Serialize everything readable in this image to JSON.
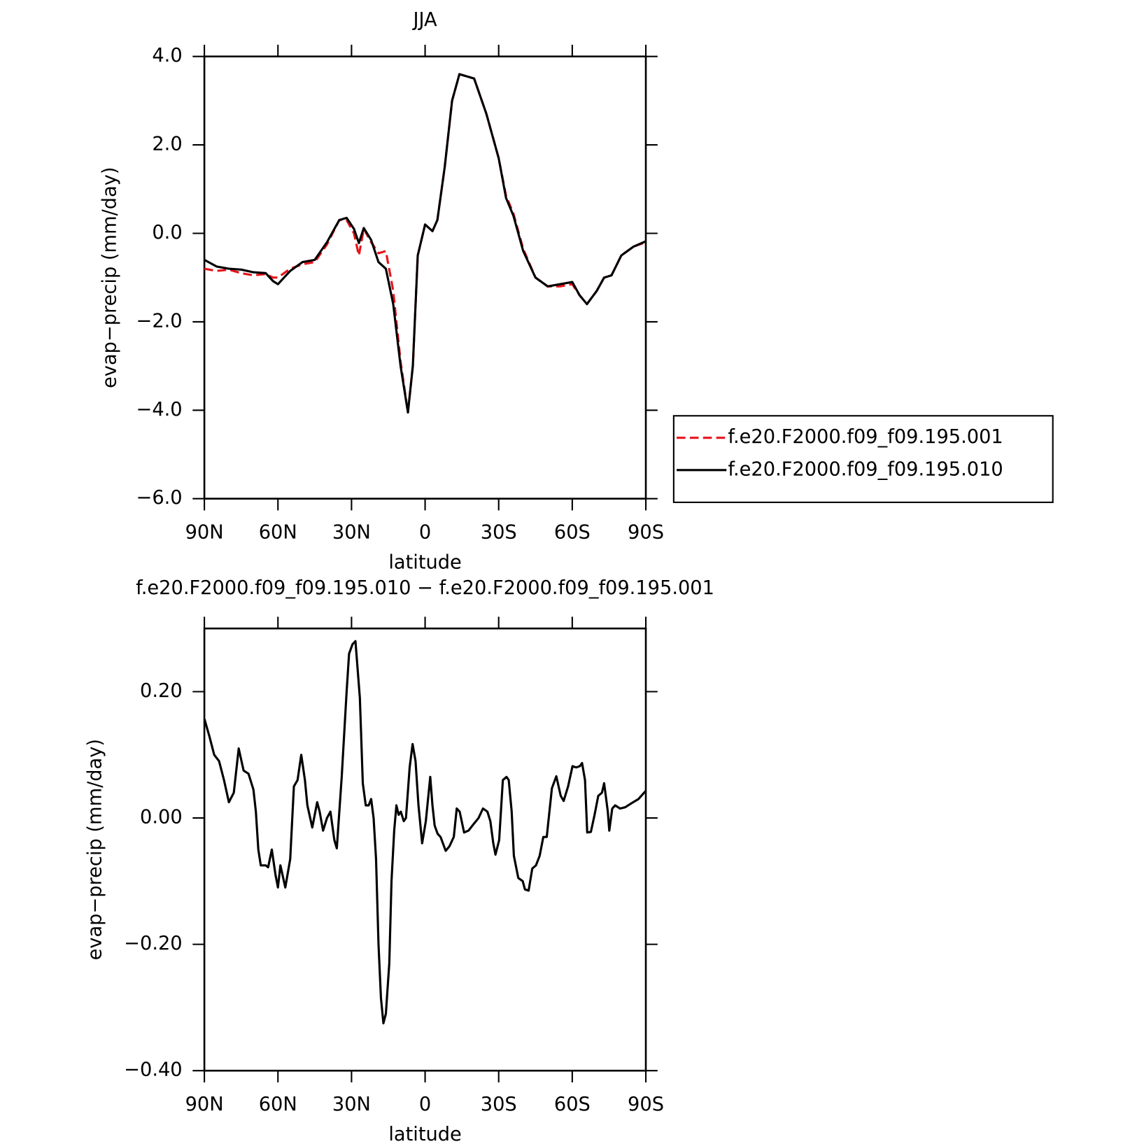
{
  "chart_data": [
    {
      "type": "line",
      "title": "JJA",
      "xlabel": "latitude",
      "ylabel": "evap−precip (mm/day)",
      "xlim": [
        90,
        -90
      ],
      "xticks": [
        {
          "value": 90,
          "label": "90N"
        },
        {
          "value": 60,
          "label": "60N"
        },
        {
          "value": 30,
          "label": "30N"
        },
        0,
        {
          "value": -30,
          "label": "30S"
        },
        {
          "value": -60,
          "label": "60S"
        },
        {
          "value": -90,
          "label": "90S"
        }
      ],
      "ylim": [
        -6,
        4
      ],
      "yticks": [
        {
          "value": 4,
          "label": "4.0"
        },
        {
          "value": 2,
          "label": "2.0"
        },
        {
          "value": 0,
          "label": "0.0"
        },
        {
          "value": -2,
          "label": "−2.0"
        },
        {
          "value": -4,
          "label": "−4.0"
        },
        {
          "value": -6,
          "label": "−6.0"
        }
      ],
      "legend": "right",
      "x": [
        90,
        85,
        80,
        75,
        70,
        65,
        62,
        60,
        55,
        50,
        45,
        40,
        35,
        32,
        29,
        27,
        25,
        22,
        19,
        16,
        13,
        10,
        7,
        5,
        3,
        0,
        -3,
        -5,
        -8,
        -11,
        -14,
        -17,
        -20,
        -25,
        -30,
        -33,
        -36,
        -40,
        -45,
        -50,
        -55,
        -60,
        -63,
        -66,
        -70,
        -73,
        -76,
        -80,
        -85,
        -90
      ],
      "series": [
        {
          "name": "f.e20.F2000.f09_f09.195.001",
          "color": "#e8141c",
          "dashed": true,
          "values": [
            -0.8,
            -0.85,
            -0.82,
            -0.9,
            -0.95,
            -0.92,
            -1.0,
            -1.0,
            -0.8,
            -0.7,
            -0.65,
            -0.25,
            0.3,
            0.3,
            0.0,
            -0.5,
            0.1,
            -0.2,
            -0.45,
            -0.4,
            -1.3,
            -2.9,
            -4.05,
            -3.0,
            -0.5,
            0.2,
            0.05,
            0.3,
            1.5,
            3.0,
            3.6,
            3.55,
            3.5,
            2.7,
            1.7,
            0.85,
            0.45,
            -0.35,
            -1.0,
            -1.2,
            -1.2,
            -1.15,
            -1.4,
            -1.6,
            -1.3,
            -1.0,
            -0.95,
            -0.5,
            -0.3,
            -0.2
          ]
        },
        {
          "name": "f.e20.F2000.f09_f09.195.010",
          "color": "#000000",
          "dashed": false,
          "values": [
            -0.6,
            -0.75,
            -0.8,
            -0.82,
            -0.88,
            -0.9,
            -1.08,
            -1.15,
            -0.85,
            -0.65,
            -0.6,
            -0.2,
            0.3,
            0.35,
            0.1,
            -0.22,
            0.12,
            -0.15,
            -0.65,
            -0.8,
            -1.6,
            -3.0,
            -4.05,
            -3.0,
            -0.5,
            0.2,
            0.05,
            0.3,
            1.5,
            3.0,
            3.6,
            3.55,
            3.5,
            2.7,
            1.7,
            0.8,
            0.4,
            -0.4,
            -1.0,
            -1.2,
            -1.15,
            -1.1,
            -1.4,
            -1.6,
            -1.3,
            -1.0,
            -0.95,
            -0.5,
            -0.3,
            -0.18
          ]
        }
      ]
    },
    {
      "type": "line",
      "title": "f.e20.F2000.f09_f09.195.010 − f.e20.F2000.f09_f09.195.001",
      "xlabel": "latitude",
      "ylabel": "evap−precip (mm/day)",
      "xlim": [
        90,
        -90
      ],
      "xticks": [
        {
          "value": 90,
          "label": "90N"
        },
        {
          "value": 60,
          "label": "60N"
        },
        {
          "value": 30,
          "label": "30N"
        },
        0,
        {
          "value": -30,
          "label": "30S"
        },
        {
          "value": -60,
          "label": "60S"
        },
        {
          "value": -90,
          "label": "90S"
        }
      ],
      "ylim": [
        -0.4,
        0.3
      ],
      "yticks": [
        {
          "value": 0.2,
          "label": "0.20"
        },
        {
          "value": 0,
          "label": "0.00"
        },
        {
          "value": -0.2,
          "label": "−0.20"
        },
        {
          "value": -0.4,
          "label": "−0.40"
        }
      ],
      "color": "#000000",
      "x": [
        90,
        88,
        86,
        84,
        82,
        80,
        78,
        76,
        74,
        72,
        70,
        69,
        68,
        67,
        65,
        64,
        62.5,
        61,
        60,
        59,
        57,
        55,
        53.5,
        52,
        50.5,
        49,
        48,
        46,
        44,
        43,
        41.6,
        40,
        38.6,
        37,
        36,
        34,
        32,
        31,
        29.6,
        28.4,
        27.2,
        26.6,
        25.4,
        24.2,
        23,
        22,
        21,
        20,
        19,
        18,
        17,
        16,
        14.6,
        13.7,
        12.6,
        11.7,
        10.8,
        9.9,
        8.7,
        7.8,
        6.3,
        5.1,
        3.9,
        2.7,
        1.2,
        -0.3,
        -2.1,
        -3,
        -3.9,
        -5.1,
        -6.3,
        -8.4,
        -9.9,
        -11.7,
        -12.9,
        -14.1,
        -15.9,
        -17.7,
        -19.7,
        -21.8,
        -23.6,
        -25.4,
        -26.6,
        -27.8,
        -28.7,
        -30.2,
        -31.7,
        -33.2,
        -34.1,
        -35.3,
        -36.2,
        -38,
        -39.8,
        -40.7,
        -42.2,
        -43.7,
        -45.2,
        -46.7,
        -48.2,
        -49.6,
        -51.7,
        -53.5,
        -55.3,
        -56.5,
        -58.3,
        -60.1,
        -61.6,
        -63.1,
        -64,
        -65.2,
        -66.1,
        -67.6,
        -69.1,
        -70.6,
        -72.1,
        -73,
        -74.5,
        -75.1,
        -76.3,
        -77.5,
        -79.5,
        -81.6,
        -84,
        -87,
        -90
      ],
      "values": [
        0.157,
        0.13,
        0.1,
        0.09,
        0.06,
        0.025,
        0.04,
        0.11,
        0.075,
        0.07,
        0.045,
        0.01,
        -0.05,
        -0.075,
        -0.075,
        -0.078,
        -0.05,
        -0.09,
        -0.11,
        -0.075,
        -0.11,
        -0.065,
        0.05,
        0.06,
        0.1,
        0.06,
        0.02,
        -0.015,
        0.025,
        0.01,
        -0.02,
        0.0,
        0.01,
        -0.035,
        -0.048,
        0.065,
        0.2,
        0.26,
        0.275,
        0.28,
        0.22,
        0.19,
        0.055,
        0.02,
        0.02,
        0.03,
        0.0,
        -0.065,
        -0.2,
        -0.285,
        -0.325,
        -0.31,
        -0.23,
        -0.1,
        -0.02,
        0.02,
        0.005,
        0.01,
        -0.005,
        0.0,
        0.08,
        0.117,
        0.09,
        0.02,
        -0.04,
        -0.005,
        0.065,
        0.02,
        -0.012,
        -0.025,
        -0.03,
        -0.052,
        -0.045,
        -0.03,
        0.015,
        0.01,
        -0.023,
        -0.02,
        -0.01,
        0.0,
        0.015,
        0.01,
        -0.005,
        -0.04,
        -0.058,
        -0.035,
        0.06,
        0.065,
        0.06,
        0.01,
        -0.06,
        -0.095,
        -0.1,
        -0.113,
        -0.115,
        -0.08,
        -0.075,
        -0.06,
        -0.03,
        -0.03,
        0.047,
        0.066,
        0.035,
        0.027,
        0.05,
        0.082,
        0.08,
        0.082,
        0.087,
        0.06,
        -0.023,
        -0.022,
        0.005,
        0.035,
        0.04,
        0.055,
        0.01,
        -0.02,
        0.015,
        0.02,
        0.015,
        0.017,
        0.023,
        0.03,
        0.043
      ]
    }
  ]
}
